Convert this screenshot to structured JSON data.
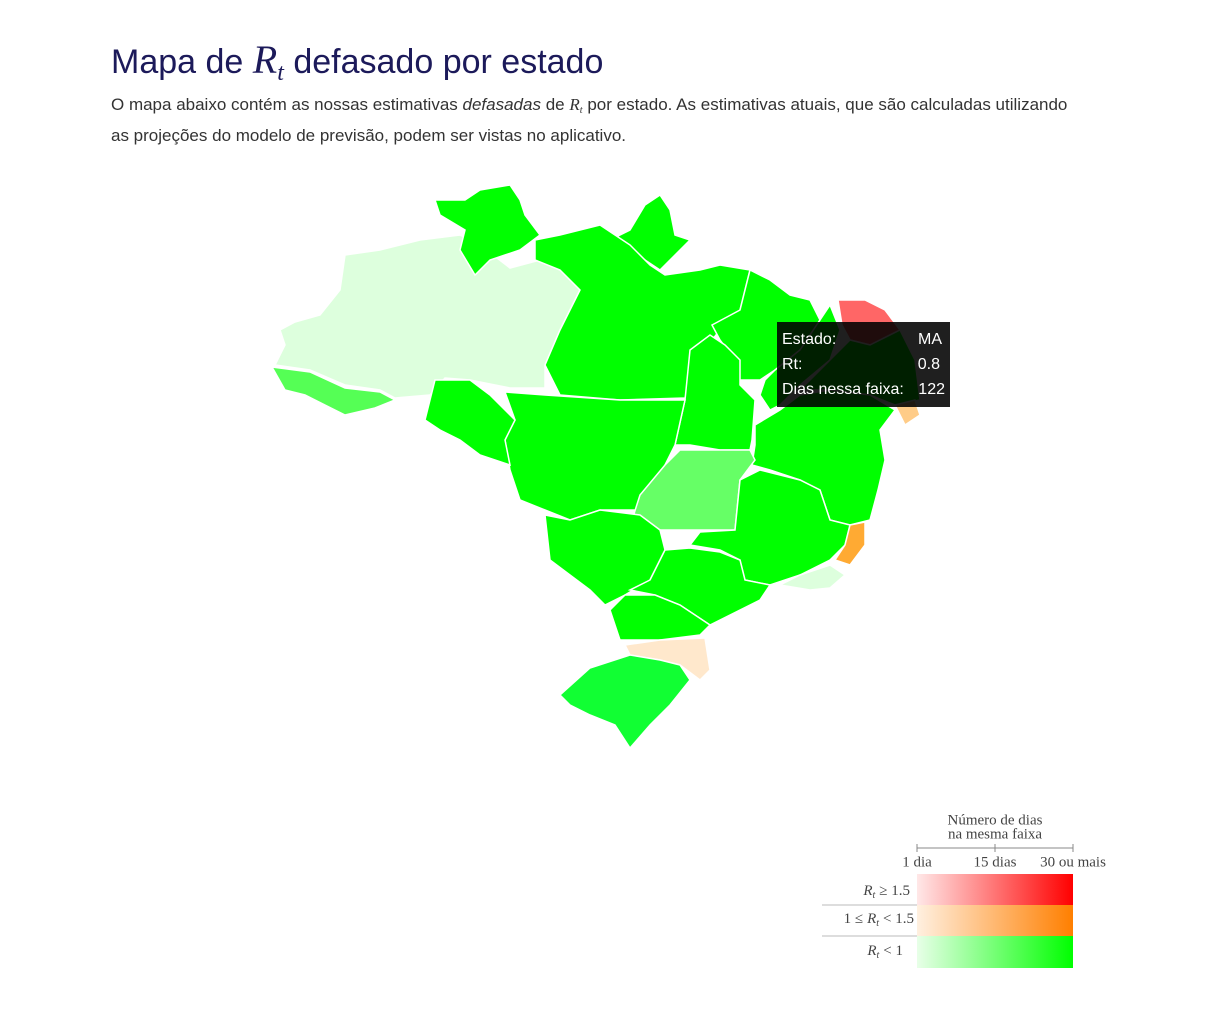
{
  "header": {
    "title": {
      "before": "Mapa de",
      "symbol": "R",
      "subscript": "t",
      "after": "defasado por estado"
    },
    "description": {
      "part1": "O mapa abaixo contém as nossas estimativas",
      "emphasis": "defasadas",
      "part2": "de",
      "symbol": "R",
      "subscript": "t",
      "part3": "por estado. As estimativas atuais, que são calculadas utilizando as projeções do modelo de previsão, podem ser vistas no aplicativo."
    }
  },
  "tooltip": {
    "rows": [
      {
        "label": "Estado:",
        "value": "MA"
      },
      {
        "label": "Rt:",
        "value": 0.8
      },
      {
        "label": "Dias nessa faixa:",
        "value": 122
      }
    ]
  },
  "legend": {
    "title": [
      "Número de dias",
      "na mesma faixa"
    ],
    "ticks": [
      "1 dia",
      "15 dias",
      "30 ou mais"
    ],
    "rows": [
      {
        "symbol": "R",
        "subscript": "t",
        "condition": "≥ 1.5"
      },
      {
        "prefix": "1 ≤",
        "symbol": "R",
        "subscript": "t",
        "condition": "< 1.5"
      },
      {
        "symbol": "R",
        "subscript": "t",
        "condition": "< 1"
      }
    ]
  }
}
